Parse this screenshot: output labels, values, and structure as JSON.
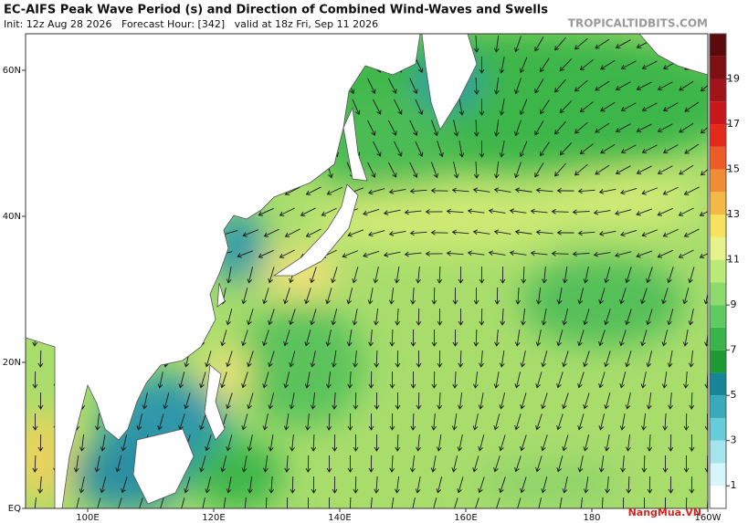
{
  "header": {
    "title": "EC-AIFS Peak Wave Period (s) and Direction of Combined Wind-Waves and Swells",
    "subtitle": "Init: 12z Aug 28 2026   Forecast Hour: [342]   valid at 18z Fri, Sep 11 2026",
    "source": "TROPICALTIDBITS.COM"
  },
  "map": {
    "lat_labels": [
      "60N",
      "40N",
      "20N",
      "EQ"
    ],
    "lon_labels": [
      "100E",
      "120E",
      "140E",
      "160E",
      "180",
      "160W"
    ]
  },
  "colorbar": {
    "ticks": [
      1,
      3,
      5,
      7,
      9,
      11,
      13,
      15,
      17,
      19
    ]
  },
  "logo": "NangMua.VN"
}
